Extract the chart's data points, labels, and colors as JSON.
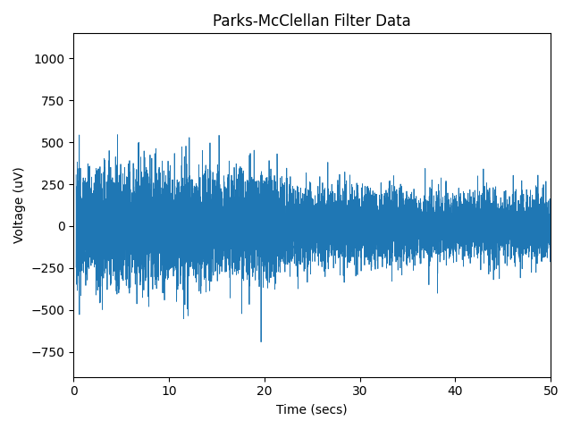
{
  "title": "Parks-McClellan Filter Data",
  "xlabel": "Time (secs)",
  "ylabel": "Voltage (uV)",
  "xlim": [
    0,
    50
  ],
  "ylim": [
    -900,
    1150
  ],
  "line_color": "#1f77b4",
  "line_width": 0.6,
  "figsize": [
    6.4,
    4.8
  ],
  "dpi": 100,
  "fs": 360,
  "duration": 50,
  "seed": 12345,
  "yticks": [
    -750,
    -500,
    -250,
    0,
    250,
    500,
    750,
    1000
  ],
  "xticks": [
    0,
    10,
    20,
    30,
    40,
    50
  ]
}
